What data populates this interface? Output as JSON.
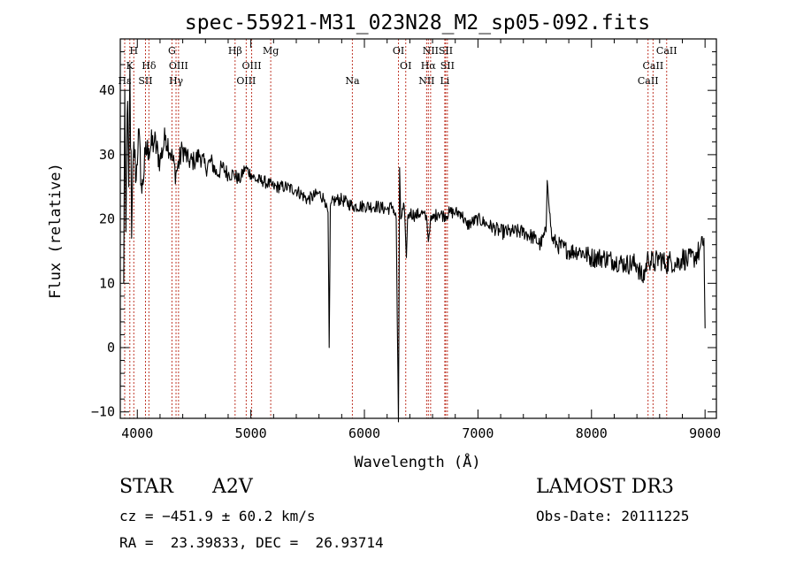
{
  "chart_data": {
    "type": "line",
    "title": "spec-55921-M31_023N28_M2_sp05-092.fits",
    "xlabel": "Wavelength (Å)",
    "ylabel": "Flux (relative)",
    "xlim": [
      3850,
      9100
    ],
    "ylim": [
      -11,
      48
    ],
    "xticks": [
      4000,
      5000,
      6000,
      7000,
      8000,
      9000
    ],
    "xtick_labels": [
      "4000",
      "5000",
      "6000",
      "7000",
      "8000",
      "9000"
    ],
    "yticks": [
      -10,
      0,
      10,
      20,
      30,
      40
    ],
    "ytick_labels": [
      "−10",
      "0",
      "10",
      "20",
      "30",
      "40"
    ],
    "grid": false,
    "line_color": "#000000",
    "marker_color": "#c0392b",
    "spectrum_anchors": {
      "x": [
        3880,
        3890,
        3900,
        3910,
        3925,
        3935,
        3950,
        3970,
        3990,
        4010,
        4040,
        4070,
        4100,
        4150,
        4200,
        4250,
        4300,
        4340,
        4400,
        4450,
        4500,
        4550,
        4600,
        4650,
        4700,
        4750,
        4800,
        4850,
        4900,
        4950,
        5000,
        5050,
        5100,
        5150,
        5200,
        5300,
        5400,
        5500,
        5600,
        5650,
        5680,
        5690,
        5700,
        5710,
        5750,
        5800,
        5900,
        6000,
        6100,
        6200,
        6250,
        6280,
        6300,
        6310,
        6320,
        6350,
        6370,
        6380,
        6400,
        6450,
        6500,
        6550,
        6563,
        6580,
        6600,
        6650,
        6700,
        6750,
        6800,
        6850,
        6900,
        7000,
        7100,
        7200,
        7300,
        7400,
        7500,
        7550,
        7600,
        7610,
        7650,
        7700,
        7800,
        7900,
        8000,
        8100,
        8200,
        8300,
        8400,
        8450,
        8500,
        8550,
        8600,
        8650,
        8700,
        8750,
        8800,
        8850,
        8900,
        8950,
        8980,
        8990,
        9000
      ],
      "y": [
        10,
        40,
        18,
        36,
        25,
        44,
        17,
        32,
        26,
        34,
        24,
        30,
        31,
        32,
        29,
        33,
        30,
        27,
        31,
        29,
        29,
        30,
        28,
        29,
        27,
        28,
        27,
        27,
        26,
        28,
        27,
        26,
        26,
        25.5,
        25,
        25,
        24.5,
        23,
        24,
        23,
        21,
        0,
        22,
        22.5,
        23,
        23,
        22,
        22,
        22,
        21.5,
        22,
        20,
        -12,
        28,
        20,
        22,
        14,
        20,
        21,
        20.5,
        21,
        20,
        16.5,
        19.5,
        20,
        21,
        20.5,
        21,
        21,
        21,
        19,
        20,
        19,
        18,
        18,
        18,
        17,
        16,
        18,
        26,
        17,
        16,
        15,
        15,
        14,
        14,
        13.5,
        13,
        13,
        10.5,
        14,
        13,
        14,
        13,
        13.5,
        13,
        14,
        13.5,
        14,
        15,
        16,
        17,
        3
      ],
      "noise": [
        3,
        6,
        6,
        6,
        6,
        6,
        6,
        3,
        3,
        3,
        2.5,
        2.5,
        2.5,
        2.5,
        2.2,
        2.2,
        2,
        2,
        2,
        1.6,
        1.6,
        1.6,
        1.6,
        1.4,
        1.4,
        1.4,
        1.2,
        1.2,
        1,
        1,
        1,
        1,
        1,
        1,
        1,
        1,
        1,
        1,
        1,
        1,
        0,
        0,
        0,
        1,
        1,
        1,
        1,
        1,
        1,
        1,
        1,
        1,
        0,
        0,
        1,
        1,
        0,
        1,
        1,
        1,
        1,
        1,
        0,
        1,
        1,
        1,
        1,
        1,
        1,
        1,
        1,
        1,
        1,
        1.2,
        1.2,
        1.2,
        1.2,
        1.2,
        1.2,
        0,
        1.2,
        1.4,
        1.4,
        1.4,
        1.6,
        1.6,
        1.6,
        1.6,
        1.8,
        1.8,
        1.8,
        1.8,
        1.8,
        1.8,
        1.8,
        1.8,
        1.8,
        1.8,
        1.8,
        1.8,
        1.8,
        1.8,
        0
      ]
    },
    "lines": [
      {
        "label": "K",
        "x": 3934,
        "row": 1
      },
      {
        "label": "H",
        "x": 3969,
        "row": 0
      },
      {
        "label": "Hε",
        "x": 3889,
        "row": 2
      },
      {
        "label": "SII",
        "x": 4072,
        "row": 2
      },
      {
        "label": "Hδ",
        "x": 4102,
        "row": 1
      },
      {
        "label": "G",
        "x": 4305,
        "row": 0
      },
      {
        "label": "Hγ",
        "x": 4341,
        "row": 2
      },
      {
        "label": "OIII",
        "x": 4363,
        "row": 1
      },
      {
        "label": "Hβ",
        "x": 4861,
        "row": 0
      },
      {
        "label": "OIII",
        "x": 4959,
        "row": 2
      },
      {
        "label": "OIII",
        "x": 5007,
        "row": 1
      },
      {
        "label": "Mg",
        "x": 5175,
        "row": 0
      },
      {
        "label": "Na",
        "x": 5894,
        "row": 2
      },
      {
        "label": "OI",
        "x": 6300,
        "row": 0
      },
      {
        "label": "OI",
        "x": 6364,
        "row": 1
      },
      {
        "label": "NII",
        "x": 6548,
        "row": 2
      },
      {
        "label": "NII",
        "x": 6583,
        "row": 0
      },
      {
        "label": "Hα",
        "x": 6563,
        "row": 1
      },
      {
        "label": "Li",
        "x": 6708,
        "row": 2
      },
      {
        "label": "SII",
        "x": 6716,
        "row": 0
      },
      {
        "label": "SII",
        "x": 6731,
        "row": 1
      },
      {
        "label": "CaII",
        "x": 8498,
        "row": 2
      },
      {
        "label": "CaII",
        "x": 8542,
        "row": 1
      },
      {
        "label": "CaII",
        "x": 8662,
        "row": 0
      }
    ]
  },
  "info": {
    "class": "STAR",
    "subclass": "A2V",
    "survey": "LAMOST DR3",
    "cz": "cz = −451.9 ± 60.2 km/s",
    "obs_date": "Obs-Date: 20111225",
    "radec": "RA =  23.39833, DEC =  26.93714"
  }
}
